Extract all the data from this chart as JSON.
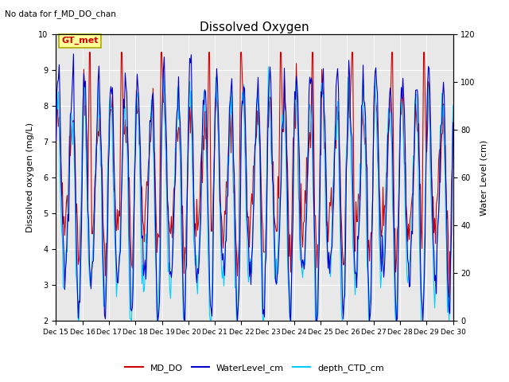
{
  "title": "Dissolved Oxygen",
  "subtitle": "No data for f_MD_DO_chan",
  "ylabel_left": "Dissolved oxygen (mg/L)",
  "ylabel_right": "Water Level (cm)",
  "ylim_left": [
    2.0,
    10.0
  ],
  "ylim_right": [
    0,
    120
  ],
  "yticks_left": [
    2.0,
    3.0,
    4.0,
    5.0,
    6.0,
    7.0,
    8.0,
    9.0,
    10.0
  ],
  "yticks_right": [
    0,
    20,
    40,
    60,
    80,
    100,
    120
  ],
  "xtick_labels": [
    "Dec 15",
    "Dec 16",
    "Dec 17",
    "Dec 18",
    "Dec 19",
    "Dec 20",
    "Dec 21",
    "Dec 22",
    "Dec 23",
    "Dec 24",
    "Dec 25",
    "Dec 26",
    "Dec 27",
    "Dec 28",
    "Dec 29",
    "Dec 30"
  ],
  "annotation_text": "GT_met",
  "annotation_bg": "#FFFF99",
  "annotation_border": "#AAAA00",
  "annotation_color": "#CC0000",
  "line_colors": {
    "MD_DO": "#CC0000",
    "WaterLevel_cm": "#0000CC",
    "depth_CTD_cm": "#00CCFF"
  },
  "legend_labels": [
    "MD_DO",
    "WaterLevel_cm",
    "depth_CTD_cm"
  ],
  "background_color": "#E8E8E8",
  "grid_color": "#FFFFFF"
}
